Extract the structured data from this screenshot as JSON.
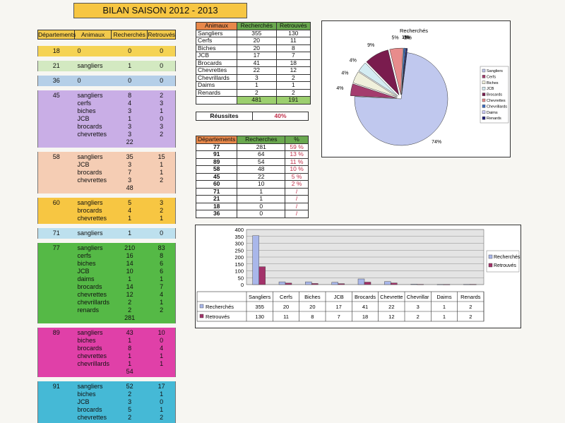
{
  "title": "BILAN SAISON 2012 - 2013",
  "left_table": {
    "headers": [
      "Départements",
      "Animaux",
      "Recherchés",
      "Retrouvés"
    ],
    "blocks": [
      {
        "color": "#f5d354",
        "rows": [
          [
            "18",
            "0",
            "0",
            "0"
          ]
        ]
      },
      {
        "color": "#d3e9c1",
        "rows": [
          [
            "21",
            "sangliers",
            "1",
            "0"
          ]
        ]
      },
      {
        "color": "#b5cfe8",
        "rows": [
          [
            "36",
            "0",
            "0",
            "0"
          ]
        ]
      },
      {
        "color": "#c9aee6",
        "rows": [
          [
            "45",
            "sangliers",
            "8",
            "2"
          ],
          [
            "",
            "cerfs",
            "4",
            "3"
          ],
          [
            "",
            "biches",
            "3",
            "1"
          ],
          [
            "",
            "JCB",
            "1",
            "0"
          ],
          [
            "",
            "brocards",
            "3",
            "3"
          ],
          [
            "",
            "chevrettes",
            "3",
            "2"
          ],
          [
            "",
            "",
            "22",
            ""
          ]
        ]
      },
      {
        "color": "#f5cdb4",
        "rows": [
          [
            "58",
            "sangliers",
            "35",
            "15"
          ],
          [
            "",
            "JCB",
            "3",
            "1"
          ],
          [
            "",
            "brocards",
            "7",
            "1"
          ],
          [
            "",
            "chevrettes",
            "3",
            "2"
          ],
          [
            "",
            "",
            "48",
            ""
          ]
        ]
      },
      {
        "color": "#f7c642",
        "rows": [
          [
            "60",
            "sangliers",
            "5",
            "3"
          ],
          [
            "",
            "brocards",
            "4",
            "2"
          ],
          [
            "",
            "chevrettes",
            "1",
            "1"
          ]
        ]
      },
      {
        "color": "#bde0ee",
        "rows": [
          [
            "71",
            "sangliers",
            "1",
            "0"
          ]
        ]
      },
      {
        "color": "#55b946",
        "rows": [
          [
            "77",
            "sangliers",
            "210",
            "83"
          ],
          [
            "",
            "cerfs",
            "16",
            "8"
          ],
          [
            "",
            "biches",
            "14",
            "6"
          ],
          [
            "",
            "JCB",
            "10",
            "6"
          ],
          [
            "",
            "daims",
            "1",
            "1"
          ],
          [
            "",
            "brocards",
            "14",
            "7"
          ],
          [
            "",
            "chevrettes",
            "12",
            "4"
          ],
          [
            "",
            "chevrillards",
            "2",
            "1"
          ],
          [
            "",
            "renards",
            "2",
            "2"
          ],
          [
            "",
            "",
            "281",
            ""
          ]
        ]
      },
      {
        "color": "#e040a8",
        "rows": [
          [
            "89",
            "sangliers",
            "43",
            "10"
          ],
          [
            "",
            "biches",
            "1",
            "0"
          ],
          [
            "",
            "brocards",
            "8",
            "4"
          ],
          [
            "",
            "chevrettes",
            "1",
            "1"
          ],
          [
            "",
            "chevrillards",
            "1",
            "1"
          ],
          [
            "",
            "",
            "54",
            ""
          ]
        ]
      },
      {
        "color": "#45b9d6",
        "rows": [
          [
            "91",
            "sangliers",
            "52",
            "17"
          ],
          [
            "",
            "biches",
            "2",
            "1"
          ],
          [
            "",
            "JCB",
            "3",
            "0"
          ],
          [
            "",
            "brocards",
            "5",
            "1"
          ],
          [
            "",
            "chevrettes",
            "2",
            "2"
          ]
        ]
      }
    ]
  },
  "animals_table": {
    "headers": [
      "Animaux",
      "Recherchés",
      "Retrouvés"
    ],
    "rows": [
      [
        "Sangliers",
        "355",
        "130"
      ],
      [
        "Cerfs",
        "20",
        "11"
      ],
      [
        "Biches",
        "20",
        "8"
      ],
      [
        "JCB",
        "17",
        "7"
      ],
      [
        "Brocards",
        "41",
        "18"
      ],
      [
        "Chevrettes",
        "22",
        "12"
      ],
      [
        "Chevrillards",
        "3",
        "2"
      ],
      [
        "Daims",
        "1",
        "1"
      ],
      [
        "Renards",
        "2",
        "2"
      ]
    ],
    "totals": [
      "",
      "481",
      "191"
    ]
  },
  "reussites": {
    "label": "Réussites",
    "value": "40%"
  },
  "dept_table": {
    "headers": [
      "Départements",
      "Recherches",
      "%"
    ],
    "rows": [
      [
        "77",
        "281",
        "59 %"
      ],
      [
        "91",
        "64",
        "13 %"
      ],
      [
        "89",
        "54",
        "11 %"
      ],
      [
        "58",
        "48",
        "10 %"
      ],
      [
        "45",
        "22",
        "5 %"
      ],
      [
        "60",
        "10",
        "2 %"
      ],
      [
        "71",
        "1",
        "/"
      ],
      [
        "21",
        "1",
        "/"
      ],
      [
        "18",
        "0",
        "/"
      ],
      [
        "36",
        "0",
        "/"
      ]
    ]
  },
  "chart_data": [
    {
      "type": "pie",
      "title": "Recherchés",
      "categories": [
        "Sangliers",
        "Cerfs",
        "Biches",
        "JCB",
        "Brocards",
        "Chevrettes",
        "Chevrillards",
        "Daims",
        "Renards"
      ],
      "values": [
        355,
        20,
        20,
        17,
        41,
        22,
        3,
        1,
        2
      ],
      "data_labels": [
        "74%",
        "4%",
        "4%",
        "4%",
        "9%",
        "5%",
        "1%",
        "0%",
        "0%"
      ],
      "colors": [
        "#c0c8ee",
        "#a43c6e",
        "#f0f0dc",
        "#d4ecf2",
        "#7a1c4e",
        "#e88c8c",
        "#3c6cc0",
        "#ccccf8",
        "#20207a"
      ],
      "legend": "right"
    },
    {
      "type": "bar",
      "title": "",
      "categories": [
        "Sangliers",
        "Cerfs",
        "Biches",
        "JCB",
        "Brocards",
        "Chevrettes",
        "Chevrillards",
        "Daims",
        "Renards"
      ],
      "category_labels": [
        "Sangliers",
        "Cerfs",
        "Biches",
        "JCB",
        "Brocards",
        "Chevrette",
        "Chevrillar",
        "Daims",
        "Renards"
      ],
      "series": [
        {
          "name": "Recherchés",
          "values": [
            355,
            20,
            20,
            17,
            41,
            22,
            3,
            1,
            2
          ],
          "color": "#a9b7ea"
        },
        {
          "name": "Retrouvés",
          "values": [
            130,
            11,
            8,
            7,
            18,
            12,
            2,
            1,
            2
          ],
          "color": "#a3326a"
        }
      ],
      "ylim": [
        0,
        400
      ],
      "yticks": [
        "0",
        "50",
        "100",
        "150",
        "200",
        "250",
        "300",
        "350",
        "400"
      ],
      "legend": "right",
      "grid": true
    }
  ]
}
